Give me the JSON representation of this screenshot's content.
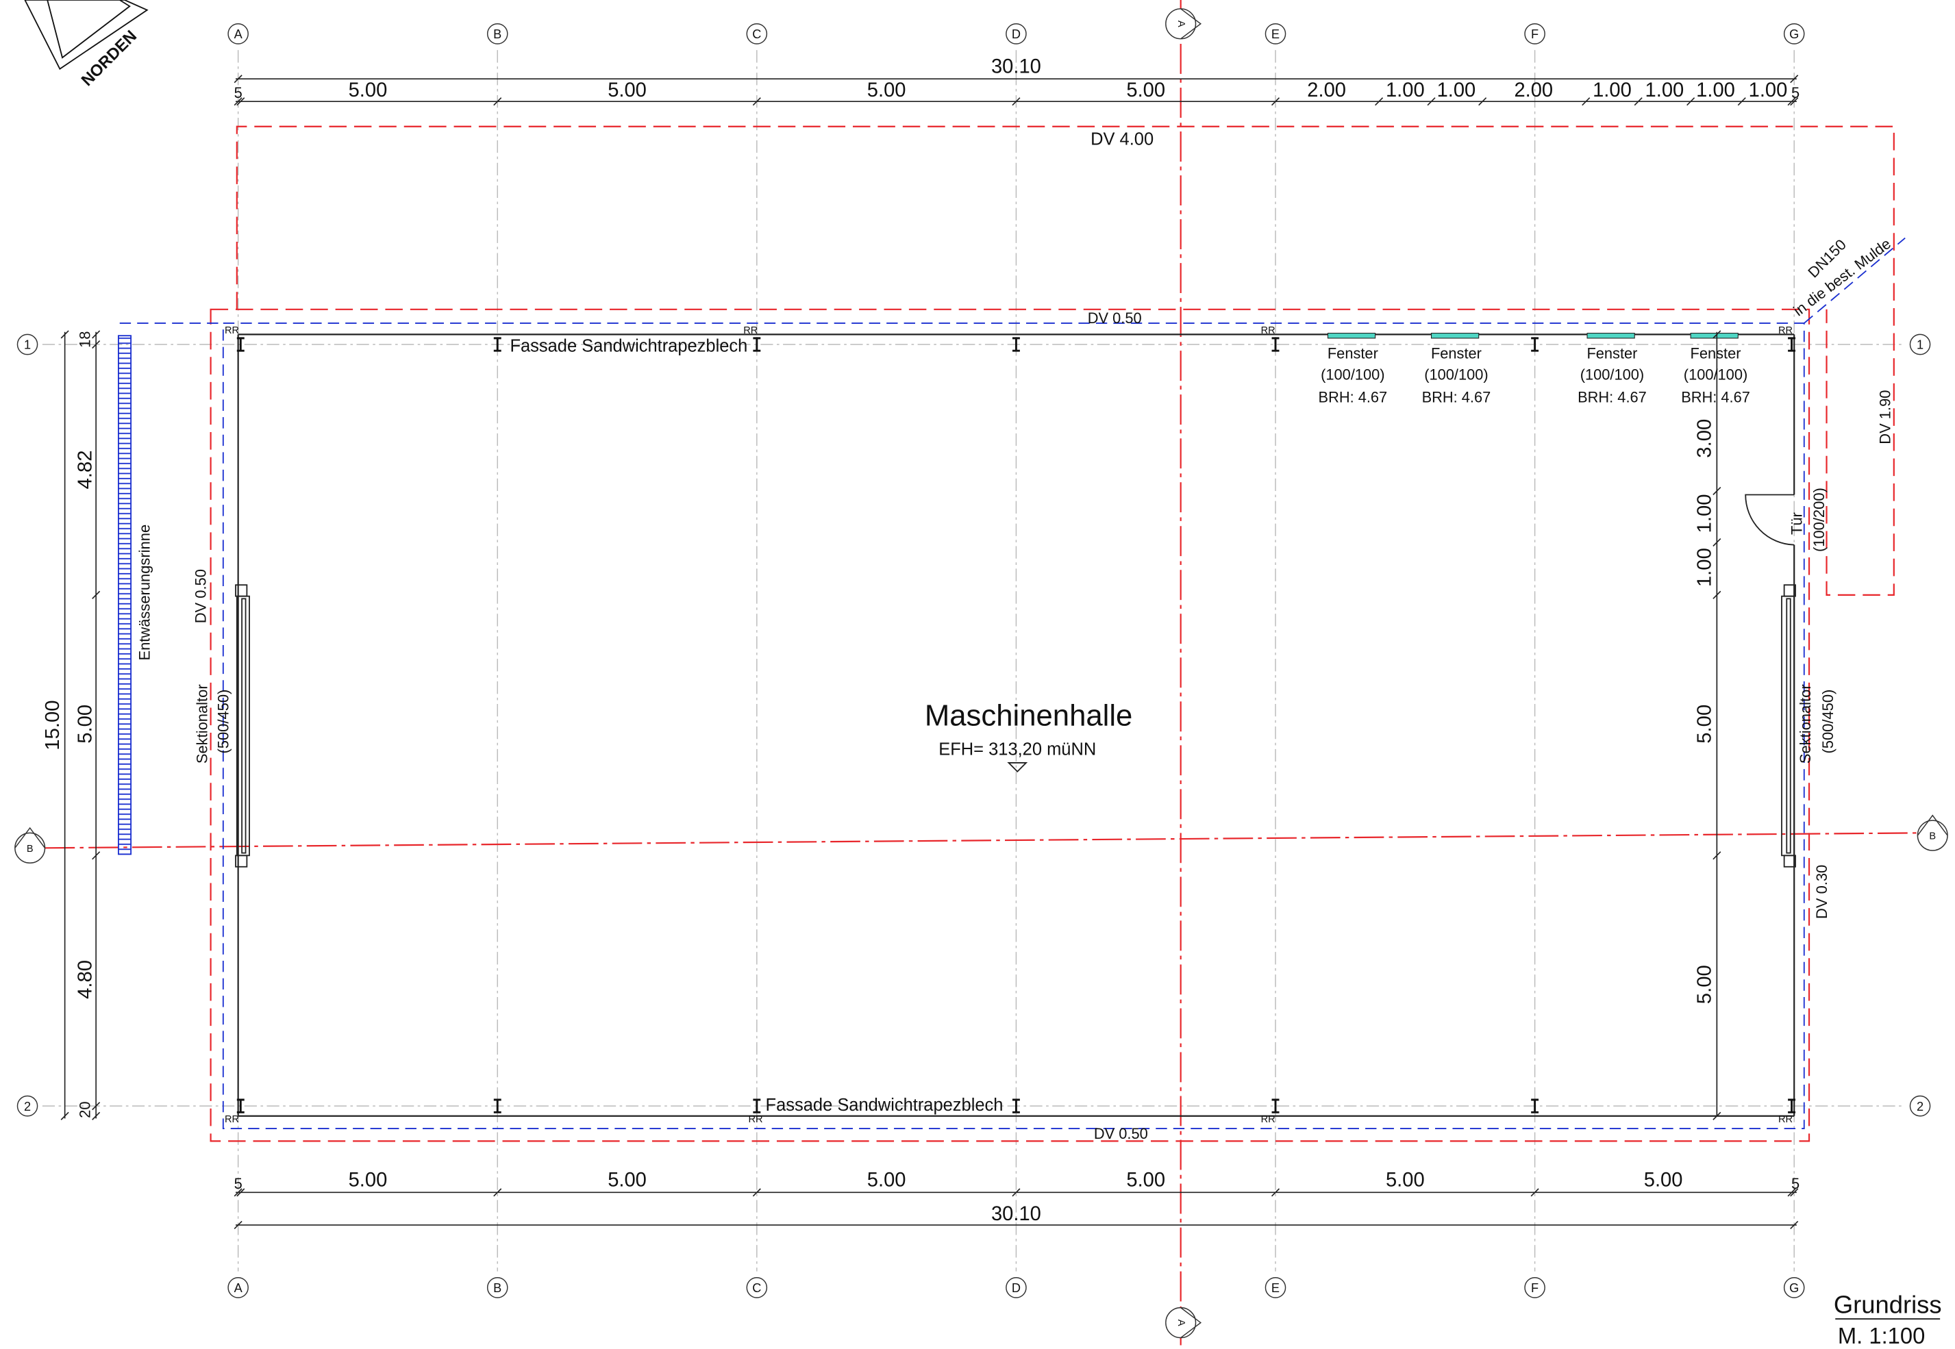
{
  "north_arrow": {
    "label": "NORDEN"
  },
  "grid": {
    "columns": [
      "A",
      "B",
      "C",
      "D",
      "E",
      "F",
      "G"
    ],
    "rows": [
      "1",
      "2"
    ]
  },
  "sections": {
    "vertical": "A",
    "horizontal": "B"
  },
  "dimensions": {
    "top": {
      "total": "30.10",
      "segments": [
        "5",
        "5.00",
        "5.00",
        "5.00",
        "5.00",
        "2.00",
        "1.00",
        "1.00",
        "2.00",
        "1.00",
        "1.00",
        "1.00",
        "1.00",
        "5"
      ]
    },
    "bottom": {
      "total": "30.10",
      "segments": [
        "5",
        "5.00",
        "5.00",
        "5.00",
        "5.00",
        "5.00",
        "5.00",
        "5"
      ]
    },
    "left": {
      "total": "15.00",
      "segments": [
        "18",
        "4.82",
        "5.00",
        "4.80",
        "20"
      ]
    },
    "right": {
      "segments": [
        "3.00",
        "1.00",
        "1.00",
        "5.00",
        "5.00"
      ]
    }
  },
  "annotations": {
    "dv_top_outer": "DV 4.00",
    "dv_top": "DV 0.50",
    "dv_bottom": "DV 0.50",
    "dv_left": "DV 0.50",
    "dv_right_upper": "DV 1.90",
    "dv_right": "DV 0.30",
    "pipe": "DN150",
    "pipe_target": "in die best. Mulde",
    "facade_top": "Fassade Sandwichtrapezblech",
    "facade_bottom": "Fassade Sandwichtrapezblech",
    "drain": "Entwässerungsrinne"
  },
  "downpipes": [
    "RR",
    "RR",
    "RR",
    "RR",
    "RR",
    "RR",
    "RR",
    "RR"
  ],
  "windows": [
    {
      "label": "Fenster",
      "size": "(100/100)",
      "sill": "BRH: 4.67"
    },
    {
      "label": "Fenster",
      "size": "(100/100)",
      "sill": "BRH: 4.67"
    },
    {
      "label": "Fenster",
      "size": "(100/100)",
      "sill": "BRH: 4.67"
    },
    {
      "label": "Fenster",
      "size": "(100/100)",
      "sill": "BRH: 4.67"
    }
  ],
  "door": {
    "label": "Tür",
    "size": "(100/200)"
  },
  "gates": [
    {
      "label": "Sektionaltor",
      "size": "(500/450)"
    },
    {
      "label": "Sektionaltor",
      "size": "(500/450)"
    }
  ],
  "room": {
    "name": "Maschinenhalle",
    "floor_level": "EFH= 313,20 müNN"
  },
  "title_block": {
    "title": "Grundriss",
    "scale": "M. 1:100"
  }
}
